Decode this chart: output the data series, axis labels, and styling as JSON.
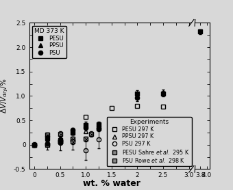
{
  "xlabel": "wt. % water",
  "xlim": [
    0,
    3.2
  ],
  "xlim2": [
    3.6,
    4.05
  ],
  "ylim": [
    -0.5,
    2.5
  ],
  "md_PESU": {
    "x": [
      0.0,
      0.25,
      0.5,
      0.75,
      1.0,
      1.25,
      2.0,
      2.5,
      3.8
    ],
    "y": [
      0.0,
      0.14,
      0.1,
      0.25,
      0.4,
      0.42,
      1.05,
      1.05,
      2.32
    ],
    "yerr": [
      0.02,
      0.05,
      0.05,
      0.05,
      0.05,
      0.04,
      0.07,
      0.06,
      0.05
    ]
  },
  "md_PPSU": {
    "x": [
      0.0,
      0.25,
      0.5,
      0.75,
      1.0,
      1.25,
      2.5
    ],
    "y": [
      0.0,
      0.12,
      0.1,
      0.25,
      0.42,
      0.42,
      1.07
    ],
    "yerr": [
      0.02,
      0.05,
      0.05,
      0.05,
      0.05,
      0.05,
      0.06
    ]
  },
  "md_PSU": {
    "x": [
      0.0,
      0.25,
      0.5,
      0.75,
      1.0,
      1.25,
      2.0
    ],
    "y": [
      0.0,
      0.03,
      0.08,
      0.31,
      0.35,
      0.33,
      0.96
    ],
    "yerr": [
      0.02,
      0.04,
      0.04,
      0.04,
      0.04,
      0.04,
      0.06
    ]
  },
  "exp_PESU": {
    "x": [
      0.0,
      0.5,
      1.0,
      1.5,
      2.0,
      2.5
    ],
    "y": [
      0.0,
      0.06,
      0.57,
      0.75,
      0.8,
      0.78
    ],
    "yerr": [
      0.0,
      0.0,
      0.0,
      0.0,
      0.0,
      0.0
    ]
  },
  "exp_PPSU": {
    "x": [
      0.0,
      0.5,
      1.0
    ],
    "y": [
      0.0,
      0.22,
      0.27
    ],
    "yerr": [
      0.0,
      0.0,
      0.0
    ]
  },
  "exp_PSU": {
    "x": [
      0.0,
      0.25,
      0.5,
      0.75,
      1.0,
      1.25
    ],
    "y": [
      0.0,
      0.0,
      0.04,
      0.08,
      -0.11,
      0.11
    ],
    "yerr": [
      0.05,
      0.1,
      0.15,
      0.18,
      0.2,
      0.18
    ]
  },
  "exp_PESU_Sahre": {
    "x": [
      0.25,
      0.5,
      0.75,
      1.1
    ],
    "y": [
      0.2,
      0.22,
      0.12,
      0.22
    ],
    "yerr": [
      0.05,
      0.05,
      0.05,
      0.05
    ]
  },
  "exp_PSU_Rowe": {
    "x": [
      0.25,
      0.5,
      0.75,
      1.0,
      1.25
    ],
    "y": [
      0.0,
      0.06,
      0.06,
      0.12,
      0.33
    ],
    "yerr": [
      0.05,
      0.05,
      0.05,
      0.05,
      0.05
    ]
  },
  "bg_color": "#d8d8d8"
}
